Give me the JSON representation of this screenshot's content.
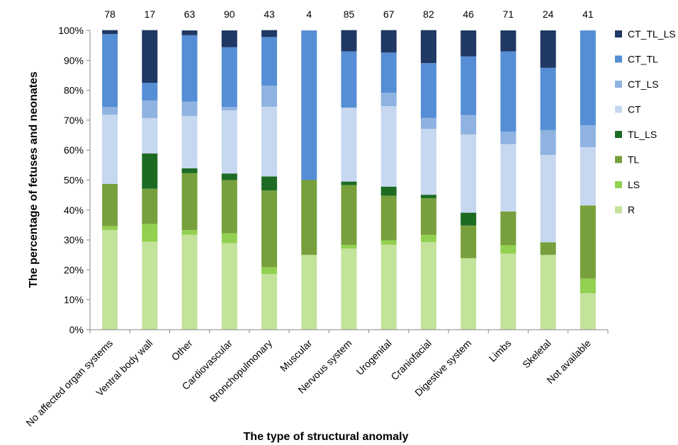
{
  "chart_data": {
    "type": "bar",
    "stacked": true,
    "percent": true,
    "title": "",
    "xlabel": "The type of structural anomaly",
    "ylabel": "The percentage  of fetuses and neonates",
    "ylim": [
      0,
      100
    ],
    "y_ticks": [
      "0%",
      "10%",
      "20%",
      "30%",
      "40%",
      "50%",
      "60%",
      "70%",
      "80%",
      "90%",
      "100%"
    ],
    "legend_position": "right",
    "categories": [
      "No affected organ systems",
      "Ventral body wall",
      "Other",
      "Cardiovascular",
      "Bronchopulmonary",
      "Muscular",
      "Nervous system",
      "Urogenital",
      "Craniofacial",
      "Digestive system",
      "Limbs",
      "Skeletal",
      "Not available"
    ],
    "counts": [
      "78",
      "17",
      "63",
      "90",
      "43",
      "4",
      "85",
      "67",
      "82",
      "46",
      "71",
      "24",
      "41"
    ],
    "series": [
      {
        "name": "R",
        "color": "#c3e29a",
        "values": [
          33.3,
          29.4,
          31.7,
          28.9,
          18.6,
          25.0,
          27.1,
          28.4,
          29.3,
          23.9,
          25.4,
          25.0,
          12.2
        ]
      },
      {
        "name": "LS",
        "color": "#92d050",
        "values": [
          1.3,
          5.9,
          1.6,
          3.3,
          2.3,
          0.0,
          1.2,
          1.5,
          2.4,
          0.0,
          2.8,
          0.0,
          4.9
        ]
      },
      {
        "name": "TL",
        "color": "#77a03c",
        "values": [
          14.1,
          11.8,
          19.0,
          17.8,
          25.6,
          25.0,
          20.0,
          14.9,
          12.2,
          10.9,
          11.3,
          4.2,
          24.4
        ]
      },
      {
        "name": "TL_LS",
        "color": "#1d6b23",
        "values": [
          0.0,
          11.8,
          1.6,
          2.2,
          4.7,
          0.0,
          1.2,
          3.0,
          1.2,
          4.3,
          0.0,
          0.0,
          0.0
        ]
      },
      {
        "name": "CT",
        "color": "#c6d7f0",
        "values": [
          23.1,
          11.8,
          17.5,
          21.1,
          23.3,
          0.0,
          24.7,
          26.9,
          22.0,
          26.1,
          22.5,
          29.2,
          19.5
        ]
      },
      {
        "name": "CT_LS",
        "color": "#8fb3e0",
        "values": [
          2.6,
          5.9,
          4.8,
          1.1,
          7.0,
          0.0,
          0.0,
          4.5,
          3.7,
          6.5,
          4.2,
          8.3,
          7.3
        ]
      },
      {
        "name": "CT_TL",
        "color": "#558ed5",
        "values": [
          24.4,
          5.9,
          22.2,
          20.0,
          16.3,
          50.0,
          18.8,
          13.4,
          18.3,
          19.6,
          26.8,
          20.8,
          31.7
        ]
      },
      {
        "name": "CT_TL_LS",
        "color": "#1f3864",
        "values": [
          1.3,
          17.6,
          1.6,
          5.6,
          2.3,
          0.0,
          7.1,
          7.5,
          11.0,
          8.7,
          7.0,
          12.5,
          0.0
        ]
      }
    ]
  }
}
